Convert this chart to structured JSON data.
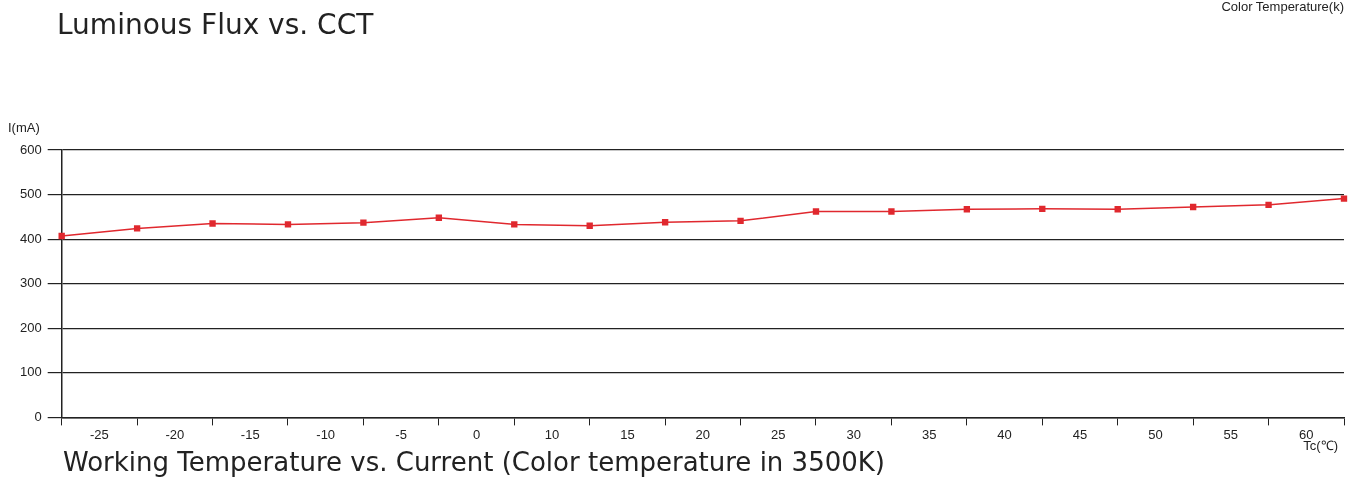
{
  "chart_data": {
    "type": "line",
    "title": "Working Temperature vs. Current (Color temperature in 3500K)",
    "annotations": [
      "Luminous Flux vs. CCT",
      "Color Temperature(k)"
    ],
    "xlabel": "Tc(℃)",
    "ylabel": "I(mA)",
    "categories": [
      null,
      "-25",
      null,
      "-20",
      null,
      "-15",
      null,
      "-10",
      null,
      "-5",
      null,
      "0",
      null,
      "10",
      null,
      "15",
      null,
      "20",
      null,
      "25",
      null,
      "30",
      null,
      "35",
      null,
      "40",
      null,
      "45",
      null,
      "50",
      null,
      "55",
      null,
      "60",
      null
    ],
    "series": [
      {
        "color": "#e0282e",
        "values": [
          407,
          null,
          424,
          null,
          435,
          null,
          433,
          null,
          437,
          null,
          448,
          null,
          433,
          null,
          430,
          null,
          438,
          null,
          441,
          null,
          462,
          null,
          462,
          null,
          467,
          null,
          468,
          null,
          467,
          null,
          472,
          null,
          477,
          null,
          491
        ]
      }
    ],
    "ylim": [
      0,
      600
    ],
    "yticks": [
      0,
      100,
      200,
      300,
      400,
      500,
      600
    ],
    "grid": "y",
    "legend": false,
    "marker": "square",
    "line_style": "solid"
  }
}
